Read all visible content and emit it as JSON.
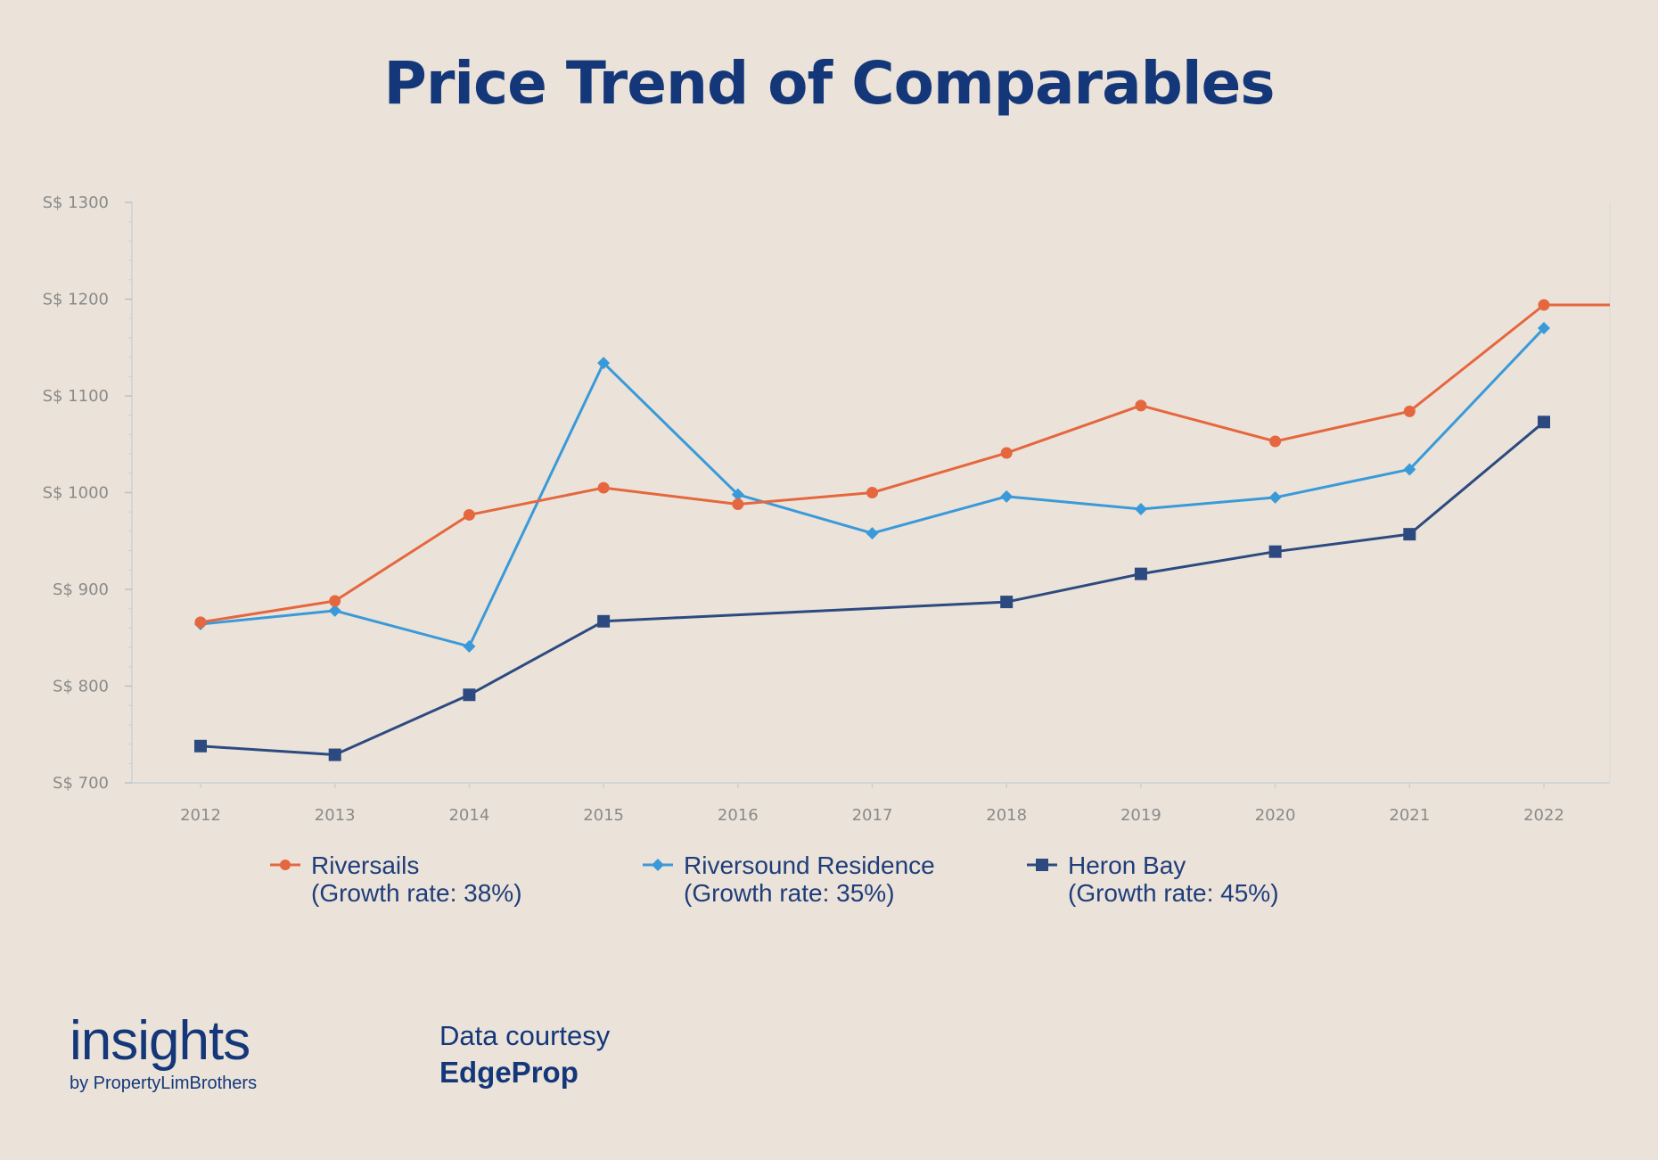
{
  "title": "Price Trend of Comparables",
  "chart_data": {
    "type": "line",
    "title": "Price Trend of Comparables",
    "xlabel": "",
    "ylabel": "",
    "categories": [
      "2012",
      "2013",
      "2014",
      "2015",
      "2016",
      "2017",
      "2018",
      "2019",
      "2020",
      "2021",
      "2022"
    ],
    "ylim": [
      700,
      1300
    ],
    "y_ticks": [
      700,
      800,
      900,
      1000,
      1100,
      1200,
      1300
    ],
    "y_tick_prefix": "S$ ",
    "grid": false,
    "legend_position": "bottom",
    "series": [
      {
        "name": "Riversails",
        "note": "(Growth rate: 38%)",
        "marker": "circle",
        "color": "#e5673f",
        "values": [
          866,
          888,
          977,
          1005,
          988,
          1000,
          1041,
          1090,
          1053,
          1084,
          1194
        ],
        "extend_after_last": true
      },
      {
        "name": "Riversound Residence",
        "note": "(Growth rate: 35%)",
        "marker": "diamond",
        "color": "#3a9ad9",
        "values": [
          864,
          878,
          841,
          1134,
          998,
          958,
          996,
          983,
          995,
          1024,
          1170
        ]
      },
      {
        "name": "Heron Bay",
        "note": "(Growth rate: 45%)",
        "marker": "square",
        "color": "#2d4a80",
        "values": [
          738,
          729,
          791,
          867,
          null,
          null,
          887,
          916,
          939,
          957,
          1073
        ]
      }
    ]
  },
  "footer": {
    "logo_main": "insights",
    "logo_sub": "by PropertyLimBrothers",
    "courtesy_label": "Data courtesy",
    "courtesy_source": "EdgeProp"
  }
}
